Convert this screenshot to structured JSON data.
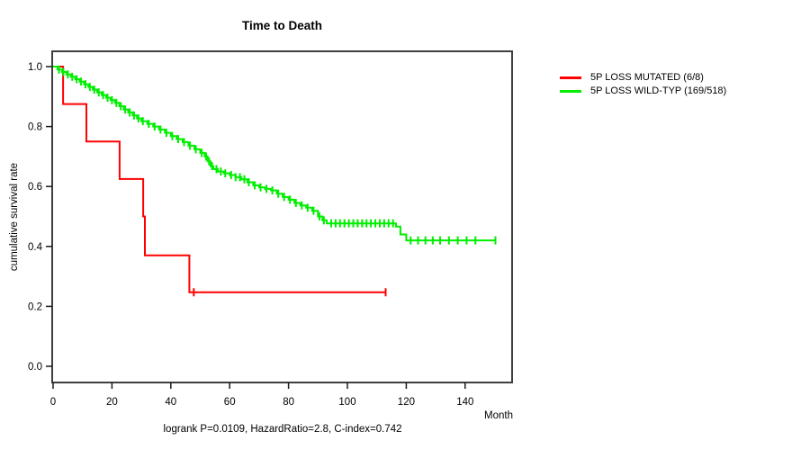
{
  "title": "Time to Death",
  "axes": {
    "x_label": "Month",
    "y_label": "cumulative survival rate",
    "xtick_labels": [
      "0",
      "20",
      "40",
      "60",
      "80",
      "100",
      "120",
      "140"
    ],
    "ytick_labels": [
      "0.0",
      "0.2",
      "0.4",
      "0.6",
      "0.8",
      "1.0"
    ]
  },
  "caption": "logrank P=0.0109, HazardRatio=2.8, C-index=0.742",
  "colors": {
    "mutated": "#ff0000",
    "wildtype": "#00ee00",
    "box": "#3f3f3f",
    "tick": "#1a1a1a",
    "text": "#000000",
    "background": "#ffffff"
  },
  "legend": [
    {
      "label": "5P LOSS MUTATED (6/8)",
      "color": "#ff0000"
    },
    {
      "label": "5P LOSS WILD-TYP (169/518)",
      "color": "#00ee00"
    }
  ],
  "stats": {
    "logrank_p": "0.0109",
    "hazard_ratio": "2.8",
    "c_index": "0.742"
  },
  "chart_data": {
    "type": "line",
    "subtype": "kaplan-meier-step-curve",
    "title": "Time to Death",
    "xlabel": "Month",
    "ylabel": "cumulative survival rate",
    "xlim": [
      0,
      156
    ],
    "ylim": [
      0.0,
      1.0
    ],
    "xticks": [
      0,
      20,
      40,
      60,
      80,
      100,
      120,
      140
    ],
    "yticks": [
      0.0,
      0.2,
      0.4,
      0.6,
      0.8,
      1.0
    ],
    "grid": false,
    "legend_position": "right-outside",
    "series": [
      {
        "id": "mutated",
        "name": "5P LOSS MUTATED (6/8)",
        "color": "#ff0000",
        "events_total": "6/8",
        "steps": [
          [
            0,
            1.0
          ],
          [
            3.4,
            0.875
          ],
          [
            11.3,
            0.75
          ],
          [
            22.6,
            0.625
          ],
          [
            30.6,
            0.5
          ],
          [
            31.2,
            0.37
          ],
          [
            46.3,
            0.247
          ]
        ],
        "end_time": 113,
        "censor_times": [
          47.8,
          113
        ]
      },
      {
        "id": "wildtype",
        "name": "5P LOSS WILD-TYP (169/518)",
        "color": "#00ee00",
        "events_total": "169/518",
        "steps": [
          [
            0,
            1.0
          ],
          [
            1.5,
            0.99
          ],
          [
            3,
            0.982
          ],
          [
            4.5,
            0.974
          ],
          [
            6,
            0.966
          ],
          [
            7.5,
            0.958
          ],
          [
            9,
            0.95
          ],
          [
            10.5,
            0.941
          ],
          [
            12,
            0.932
          ],
          [
            13.5,
            0.923
          ],
          [
            15,
            0.914
          ],
          [
            16.5,
            0.905
          ],
          [
            18,
            0.896
          ],
          [
            19.5,
            0.888
          ],
          [
            21,
            0.879
          ],
          [
            22.5,
            0.868
          ],
          [
            24,
            0.857
          ],
          [
            25.5,
            0.847
          ],
          [
            27,
            0.837
          ],
          [
            28.5,
            0.827
          ],
          [
            30,
            0.818
          ],
          [
            32,
            0.809
          ],
          [
            34,
            0.8
          ],
          [
            36,
            0.79
          ],
          [
            38,
            0.779
          ],
          [
            40,
            0.768
          ],
          [
            42,
            0.758
          ],
          [
            44,
            0.748
          ],
          [
            46,
            0.736
          ],
          [
            48,
            0.724
          ],
          [
            50,
            0.712
          ],
          [
            51.5,
            0.7
          ],
          [
            52.5,
            0.684
          ],
          [
            53.5,
            0.668
          ],
          [
            54.5,
            0.658
          ],
          [
            56,
            0.65
          ],
          [
            58,
            0.644
          ],
          [
            60,
            0.638
          ],
          [
            62,
            0.631
          ],
          [
            64,
            0.624
          ],
          [
            66,
            0.614
          ],
          [
            68,
            0.604
          ],
          [
            70,
            0.597
          ],
          [
            72,
            0.592
          ],
          [
            74,
            0.587
          ],
          [
            76,
            0.576
          ],
          [
            78,
            0.565
          ],
          [
            80,
            0.556
          ],
          [
            82,
            0.545
          ],
          [
            84,
            0.537
          ],
          [
            86,
            0.529
          ],
          [
            88,
            0.519
          ],
          [
            90,
            0.5
          ],
          [
            91.5,
            0.487
          ],
          [
            93,
            0.477
          ],
          [
            116.5,
            0.466
          ],
          [
            118,
            0.44
          ],
          [
            120,
            0.42
          ]
        ],
        "end_time": 150.3,
        "censor_times": [
          2,
          3.5,
          5,
          6.5,
          8,
          9.5,
          11,
          12.5,
          14,
          15.5,
          17,
          18.5,
          20,
          21.5,
          23,
          24.5,
          26,
          27.5,
          29,
          30.5,
          32.5,
          34.5,
          36.5,
          38.5,
          40.5,
          42.5,
          44.5,
          46.5,
          48.5,
          50.5,
          52,
          53,
          54,
          55.5,
          57,
          58.5,
          60.5,
          62,
          63.5,
          65,
          66.5,
          68.5,
          70.5,
          72.5,
          74.5,
          76.5,
          78.5,
          80.5,
          82.5,
          84.5,
          86.5,
          88.5,
          90.5,
          92,
          94.5,
          96,
          97.5,
          99,
          100.5,
          102,
          103.5,
          105,
          106.5,
          108,
          109.5,
          111,
          112.5,
          114,
          115.5,
          121.5,
          124,
          126.5,
          129,
          131.5,
          134.5,
          137.5,
          140.5,
          143.5,
          150.3
        ]
      }
    ]
  }
}
